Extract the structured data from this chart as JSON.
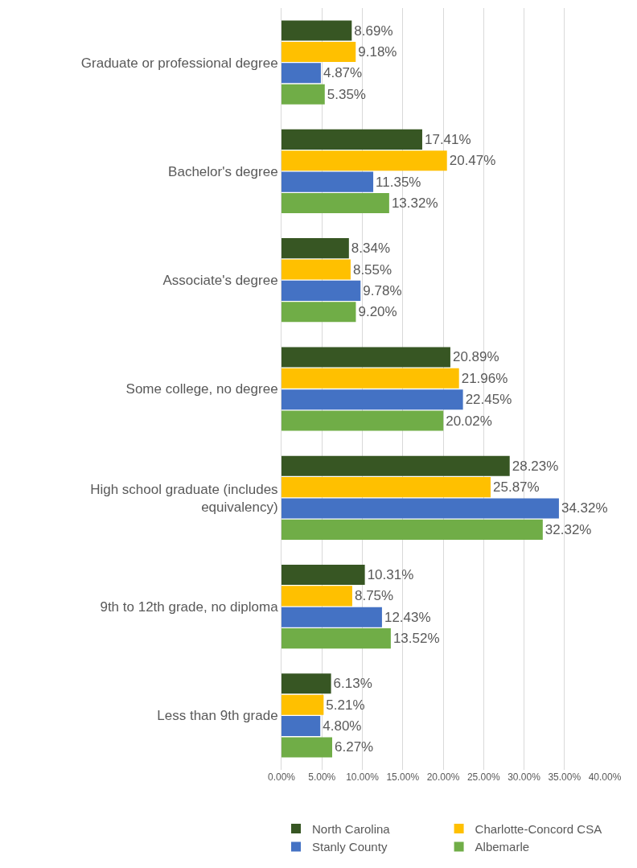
{
  "chart_data": {
    "type": "bar",
    "orientation": "horizontal",
    "categories": [
      "Graduate or professional degree",
      "Bachelor's degree",
      "Associate's degree",
      "Some college, no degree",
      "High school graduate (includes equivalency)",
      "9th to 12th grade, no diploma",
      "Less than 9th grade"
    ],
    "series": [
      {
        "name": "North Carolina",
        "color": "#375623",
        "values": [
          8.69,
          17.41,
          8.34,
          20.89,
          28.23,
          10.31,
          6.13
        ],
        "value_labels": [
          "8.69%",
          "17.41%",
          "8.34%",
          "20.89%",
          "28.23%",
          "10.31%",
          "6.13%"
        ]
      },
      {
        "name": "Charlotte-Concord CSA",
        "color": "#ffc000",
        "values": [
          9.18,
          20.47,
          8.55,
          21.96,
          25.87,
          8.75,
          5.21
        ],
        "value_labels": [
          "9.18%",
          "20.47%",
          "8.55%",
          "21.96%",
          "25.87%",
          "8.75%",
          "5.21%"
        ]
      },
      {
        "name": "Stanly County",
        "color": "#4472c4",
        "values": [
          4.87,
          11.35,
          9.78,
          22.45,
          34.32,
          12.43,
          4.8
        ],
        "value_labels": [
          "4.87%",
          "11.35%",
          "9.78%",
          "22.45%",
          "34.32%",
          "12.43%",
          "4.80%"
        ]
      },
      {
        "name": "Albemarle",
        "color": "#70ad47",
        "values": [
          5.35,
          13.32,
          9.2,
          20.02,
          32.32,
          13.52,
          6.27
        ],
        "value_labels": [
          "5.35%",
          "13.32%",
          "9.20%",
          "20.02%",
          "32.32%",
          "13.52%",
          "6.27%"
        ]
      }
    ],
    "xlim": [
      0,
      40
    ],
    "xticks": [
      {
        "value": 0,
        "label": "0.00%"
      },
      {
        "value": 5,
        "label": "5.00%"
      },
      {
        "value": 10,
        "label": "10.00%"
      },
      {
        "value": 15,
        "label": "15.00%"
      },
      {
        "value": 20,
        "label": "20.00%"
      },
      {
        "value": 25,
        "label": "25.00%"
      },
      {
        "value": 30,
        "label": "30.00%"
      },
      {
        "value": 35,
        "label": "35.00%"
      },
      {
        "value": 40,
        "label": "40.00%"
      }
    ],
    "grid": "x",
    "legend": "bottom"
  }
}
